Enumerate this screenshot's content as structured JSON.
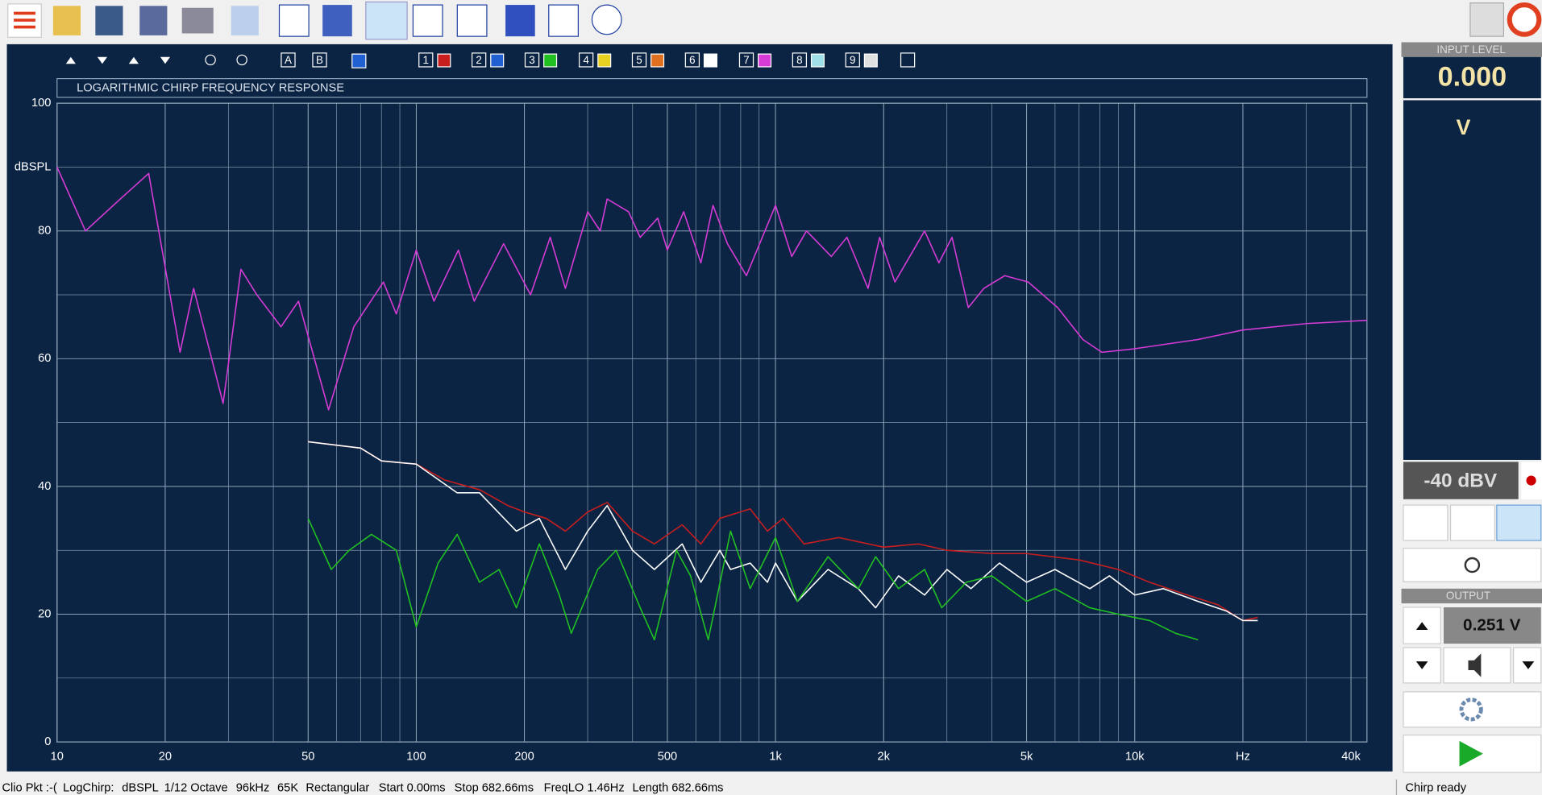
{
  "overlay_bar": {
    "labels": [
      "A",
      "B",
      "1",
      "2",
      "3",
      "4",
      "5",
      "6",
      "7",
      "8",
      "9"
    ]
  },
  "chart_data": {
    "type": "line",
    "title": "LOGARITHMIC CHIRP FREQUENCY RESPONSE",
    "y_label": "dBSPL",
    "log_x": true,
    "grid": true,
    "xlim": [
      10,
      44300
    ],
    "xticks": [
      10,
      20,
      50,
      100,
      200,
      500,
      {
        "value": 1000,
        "label": "1k"
      },
      {
        "value": 2000,
        "label": "2k"
      },
      {
        "value": 5000,
        "label": "5k"
      },
      {
        "value": 10000,
        "label": "10k"
      },
      {
        "value": 20000,
        "label": "Hz"
      },
      {
        "value": 40000,
        "label": "40k"
      }
    ],
    "ylim": [
      0,
      100
    ],
    "yticks": [
      0,
      20,
      40,
      60,
      80,
      100
    ],
    "series": [
      {
        "color": "#d63bd6",
        "x": [
          10,
          12,
          15,
          18,
          22,
          24,
          29,
          32.5,
          36,
          42,
          47,
          57,
          67,
          81,
          88,
          100,
          112,
          131,
          145,
          175,
          208,
          236,
          260,
          300,
          325,
          340,
          390,
          420,
          470,
          500,
          555,
          620,
          670,
          735,
          830,
          1000,
          1110,
          1220,
          1430,
          1580,
          1810,
          1950,
          2150,
          2600,
          2850,
          3100,
          3440,
          3800,
          4350,
          5050,
          6100,
          7170,
          8100,
          9800,
          15000,
          20000,
          30000,
          44300
        ],
        "values": [
          90,
          80,
          85,
          89,
          61,
          71,
          53,
          74,
          70,
          65,
          69,
          52,
          65,
          72,
          67,
          77,
          69,
          77,
          69,
          78,
          70,
          79,
          71,
          83,
          80,
          85,
          83,
          79,
          82,
          77,
          83,
          75,
          84,
          78,
          73,
          84,
          76,
          80,
          76,
          79,
          71,
          79,
          72,
          80,
          75,
          79,
          68,
          71,
          73,
          72,
          68,
          63,
          61,
          61.5,
          63,
          64.5,
          65.5,
          66
        ]
      },
      {
        "color": "#c81e1e",
        "x": [
          50,
          70,
          80,
          100,
          120,
          150,
          180,
          200,
          230,
          260,
          300,
          340,
          400,
          460,
          550,
          620,
          700,
          850,
          950,
          1050,
          1200,
          1500,
          2000,
          2500,
          3000,
          4000,
          5000,
          7000,
          9000,
          11000,
          14000,
          17000,
          20000,
          22000
        ],
        "values": [
          47,
          46,
          44,
          43.5,
          41,
          39.5,
          37,
          36,
          35,
          33,
          36,
          37.5,
          33,
          31,
          34,
          31,
          35,
          36.5,
          33,
          35,
          31,
          32,
          30.5,
          31,
          30,
          29.5,
          29.5,
          28.5,
          27,
          25,
          23,
          21.5,
          19,
          19.5
        ]
      },
      {
        "color": "#ffffff",
        "x": [
          50,
          70,
          80,
          100,
          130,
          150,
          190,
          220,
          260,
          300,
          340,
          400,
          460,
          550,
          620,
          700,
          750,
          850,
          950,
          1000,
          1150,
          1400,
          1700,
          1900,
          2200,
          2600,
          3000,
          3500,
          4200,
          5000,
          6000,
          7500,
          8500,
          10000,
          12000,
          15000,
          18000,
          20000,
          22000
        ],
        "values": [
          47,
          46,
          44,
          43.5,
          39,
          39,
          33,
          35,
          27,
          33,
          37,
          30,
          27,
          31,
          25,
          30,
          27,
          28,
          25,
          28,
          22,
          27,
          24,
          21,
          26,
          23,
          27,
          24,
          28,
          25,
          27,
          24,
          26,
          23,
          24,
          22,
          20.5,
          19,
          19
        ]
      },
      {
        "color": "#21c021",
        "x": [
          50,
          58,
          65,
          75,
          88,
          100,
          115,
          130,
          150,
          170,
          190,
          220,
          250,
          270,
          320,
          360,
          420,
          460,
          530,
          580,
          650,
          750,
          850,
          1000,
          1150,
          1400,
          1700,
          1900,
          2200,
          2600,
          2900,
          3400,
          4000,
          5000,
          6000,
          7500,
          9000,
          11000,
          13000,
          15000
        ],
        "values": [
          35,
          27,
          30,
          32.5,
          30,
          18,
          28,
          32.5,
          25,
          27,
          21,
          31,
          23,
          17,
          27,
          30,
          21,
          16,
          30,
          26,
          16,
          33,
          24,
          32,
          22,
          29,
          24,
          29,
          24,
          27,
          21,
          25,
          26,
          22,
          24,
          21,
          20,
          19,
          17,
          16
        ]
      }
    ]
  },
  "input_panel": {
    "header": "INPUT LEVEL",
    "value": "0.000",
    "unit": "V",
    "range": "-40 dBV"
  },
  "output_panel": {
    "header": "OUTPUT",
    "value": "0.251 V"
  },
  "status_bar": {
    "items": [
      "Clio Pkt :-(",
      "LogChirp:",
      "dBSPL",
      "1/12 Octave",
      "96kHz",
      "65K",
      "Rectangular",
      "Start 0.00ms",
      "Stop 682.66ms",
      "FreqLO 1.46Hz",
      "Length 682.66ms"
    ],
    "state": "Chirp ready"
  }
}
